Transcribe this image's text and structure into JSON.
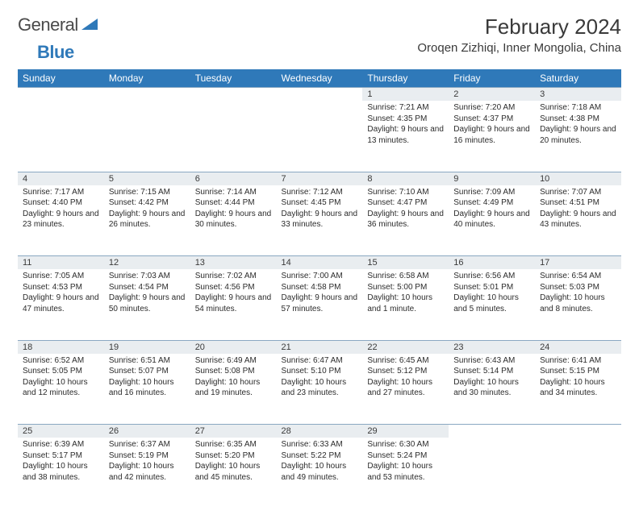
{
  "logo": {
    "word1": "General",
    "word2": "Blue"
  },
  "title": "February 2024",
  "location": "Oroqen Zizhiqi, Inner Mongolia, China",
  "colors": {
    "header_bg": "#2f79b9",
    "daynum_bg": "#e9edf0",
    "rule": "#8aa8c2"
  },
  "day_headers": [
    "Sunday",
    "Monday",
    "Tuesday",
    "Wednesday",
    "Thursday",
    "Friday",
    "Saturday"
  ],
  "weeks": [
    [
      null,
      null,
      null,
      null,
      {
        "n": "1",
        "sunrise": "Sunrise: 7:21 AM",
        "sunset": "Sunset: 4:35 PM",
        "daylight": "Daylight: 9 hours and 13 minutes."
      },
      {
        "n": "2",
        "sunrise": "Sunrise: 7:20 AM",
        "sunset": "Sunset: 4:37 PM",
        "daylight": "Daylight: 9 hours and 16 minutes."
      },
      {
        "n": "3",
        "sunrise": "Sunrise: 7:18 AM",
        "sunset": "Sunset: 4:38 PM",
        "daylight": "Daylight: 9 hours and 20 minutes."
      }
    ],
    [
      {
        "n": "4",
        "sunrise": "Sunrise: 7:17 AM",
        "sunset": "Sunset: 4:40 PM",
        "daylight": "Daylight: 9 hours and 23 minutes."
      },
      {
        "n": "5",
        "sunrise": "Sunrise: 7:15 AM",
        "sunset": "Sunset: 4:42 PM",
        "daylight": "Daylight: 9 hours and 26 minutes."
      },
      {
        "n": "6",
        "sunrise": "Sunrise: 7:14 AM",
        "sunset": "Sunset: 4:44 PM",
        "daylight": "Daylight: 9 hours and 30 minutes."
      },
      {
        "n": "7",
        "sunrise": "Sunrise: 7:12 AM",
        "sunset": "Sunset: 4:45 PM",
        "daylight": "Daylight: 9 hours and 33 minutes."
      },
      {
        "n": "8",
        "sunrise": "Sunrise: 7:10 AM",
        "sunset": "Sunset: 4:47 PM",
        "daylight": "Daylight: 9 hours and 36 minutes."
      },
      {
        "n": "9",
        "sunrise": "Sunrise: 7:09 AM",
        "sunset": "Sunset: 4:49 PM",
        "daylight": "Daylight: 9 hours and 40 minutes."
      },
      {
        "n": "10",
        "sunrise": "Sunrise: 7:07 AM",
        "sunset": "Sunset: 4:51 PM",
        "daylight": "Daylight: 9 hours and 43 minutes."
      }
    ],
    [
      {
        "n": "11",
        "sunrise": "Sunrise: 7:05 AM",
        "sunset": "Sunset: 4:53 PM",
        "daylight": "Daylight: 9 hours and 47 minutes."
      },
      {
        "n": "12",
        "sunrise": "Sunrise: 7:03 AM",
        "sunset": "Sunset: 4:54 PM",
        "daylight": "Daylight: 9 hours and 50 minutes."
      },
      {
        "n": "13",
        "sunrise": "Sunrise: 7:02 AM",
        "sunset": "Sunset: 4:56 PM",
        "daylight": "Daylight: 9 hours and 54 minutes."
      },
      {
        "n": "14",
        "sunrise": "Sunrise: 7:00 AM",
        "sunset": "Sunset: 4:58 PM",
        "daylight": "Daylight: 9 hours and 57 minutes."
      },
      {
        "n": "15",
        "sunrise": "Sunrise: 6:58 AM",
        "sunset": "Sunset: 5:00 PM",
        "daylight": "Daylight: 10 hours and 1 minute."
      },
      {
        "n": "16",
        "sunrise": "Sunrise: 6:56 AM",
        "sunset": "Sunset: 5:01 PM",
        "daylight": "Daylight: 10 hours and 5 minutes."
      },
      {
        "n": "17",
        "sunrise": "Sunrise: 6:54 AM",
        "sunset": "Sunset: 5:03 PM",
        "daylight": "Daylight: 10 hours and 8 minutes."
      }
    ],
    [
      {
        "n": "18",
        "sunrise": "Sunrise: 6:52 AM",
        "sunset": "Sunset: 5:05 PM",
        "daylight": "Daylight: 10 hours and 12 minutes."
      },
      {
        "n": "19",
        "sunrise": "Sunrise: 6:51 AM",
        "sunset": "Sunset: 5:07 PM",
        "daylight": "Daylight: 10 hours and 16 minutes."
      },
      {
        "n": "20",
        "sunrise": "Sunrise: 6:49 AM",
        "sunset": "Sunset: 5:08 PM",
        "daylight": "Daylight: 10 hours and 19 minutes."
      },
      {
        "n": "21",
        "sunrise": "Sunrise: 6:47 AM",
        "sunset": "Sunset: 5:10 PM",
        "daylight": "Daylight: 10 hours and 23 minutes."
      },
      {
        "n": "22",
        "sunrise": "Sunrise: 6:45 AM",
        "sunset": "Sunset: 5:12 PM",
        "daylight": "Daylight: 10 hours and 27 minutes."
      },
      {
        "n": "23",
        "sunrise": "Sunrise: 6:43 AM",
        "sunset": "Sunset: 5:14 PM",
        "daylight": "Daylight: 10 hours and 30 minutes."
      },
      {
        "n": "24",
        "sunrise": "Sunrise: 6:41 AM",
        "sunset": "Sunset: 5:15 PM",
        "daylight": "Daylight: 10 hours and 34 minutes."
      }
    ],
    [
      {
        "n": "25",
        "sunrise": "Sunrise: 6:39 AM",
        "sunset": "Sunset: 5:17 PM",
        "daylight": "Daylight: 10 hours and 38 minutes."
      },
      {
        "n": "26",
        "sunrise": "Sunrise: 6:37 AM",
        "sunset": "Sunset: 5:19 PM",
        "daylight": "Daylight: 10 hours and 42 minutes."
      },
      {
        "n": "27",
        "sunrise": "Sunrise: 6:35 AM",
        "sunset": "Sunset: 5:20 PM",
        "daylight": "Daylight: 10 hours and 45 minutes."
      },
      {
        "n": "28",
        "sunrise": "Sunrise: 6:33 AM",
        "sunset": "Sunset: 5:22 PM",
        "daylight": "Daylight: 10 hours and 49 minutes."
      },
      {
        "n": "29",
        "sunrise": "Sunrise: 6:30 AM",
        "sunset": "Sunset: 5:24 PM",
        "daylight": "Daylight: 10 hours and 53 minutes."
      },
      null,
      null
    ]
  ]
}
